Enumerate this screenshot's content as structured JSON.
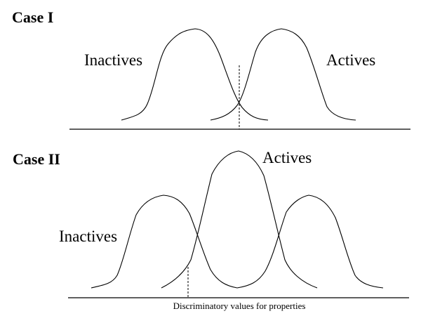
{
  "case1": {
    "heading": "Case I",
    "inactives_label": "Inactives",
    "actives_label": "Actives"
  },
  "case2": {
    "heading": "Case II",
    "inactives_label": "Inactives",
    "actives_label": "Actives"
  },
  "caption": "Discriminatory values for properties"
}
